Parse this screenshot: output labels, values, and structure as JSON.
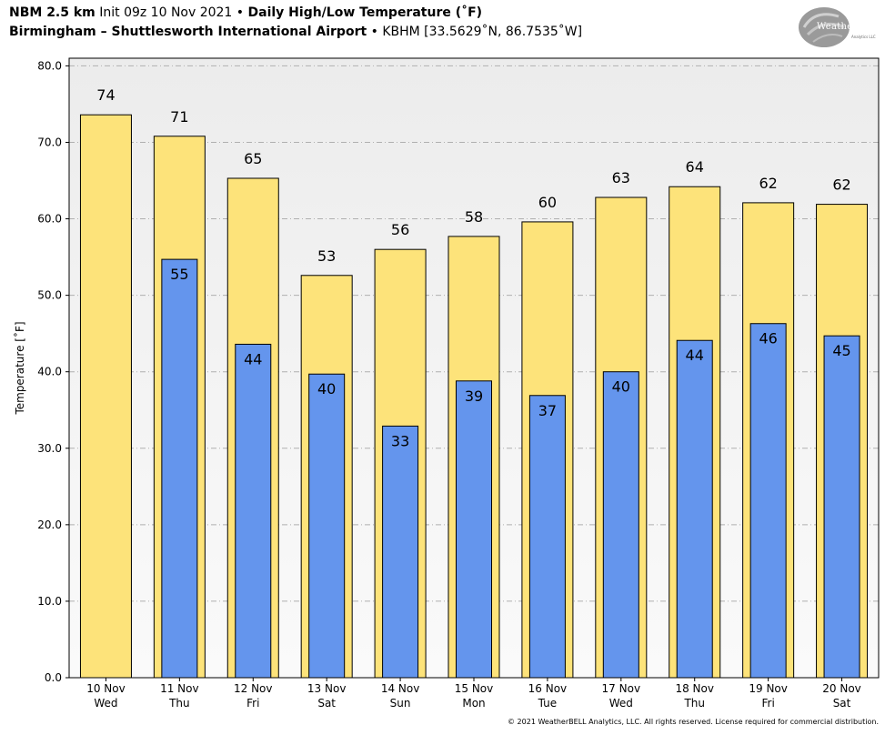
{
  "header": {
    "line1_bold_a": "NBM 2.5 km",
    "line1_regular": " Init 09z 10 Nov 2021 • ",
    "line1_bold_b": "Daily High/Low Temperature (˚F)",
    "line2_bold": "Birmingham – Shuttlesworth International Airport",
    "line2_regular": " • KBHM [33.5629˚N, 86.7535˚W]"
  },
  "logo": {
    "text": "WeatherBELL",
    "subtext": "Analytics LLC",
    "icon": "weatherbell-swirl-logo"
  },
  "copyright": "© 2021 WeatherBELL Analytics, LLC. All rights reserved. License required for commercial distribution.",
  "chart_data": {
    "type": "bar",
    "ylabel": "Temperature [˚F]",
    "xlabel": "",
    "ylim": [
      0,
      81
    ],
    "yticks": [
      0,
      10,
      20,
      30,
      40,
      50,
      60,
      70,
      80
    ],
    "ytick_labels": [
      "0.0",
      "10.0",
      "20.0",
      "30.0",
      "40.0",
      "50.0",
      "60.0",
      "70.0",
      "80.0"
    ],
    "grid": "horizontal dashed",
    "categories": [
      [
        "10 Nov",
        "Wed"
      ],
      [
        "11 Nov",
        "Thu"
      ],
      [
        "12 Nov",
        "Fri"
      ],
      [
        "13 Nov",
        "Sat"
      ],
      [
        "14 Nov",
        "Sun"
      ],
      [
        "15 Nov",
        "Mon"
      ],
      [
        "16 Nov",
        "Tue"
      ],
      [
        "17 Nov",
        "Wed"
      ],
      [
        "18 Nov",
        "Thu"
      ],
      [
        "19 Nov",
        "Fri"
      ],
      [
        "20 Nov",
        "Sat"
      ]
    ],
    "series": [
      {
        "name": "",
        "color": "#fde37a",
        "values": [
          73.6,
          70.8,
          65.3,
          52.6,
          56.0,
          57.7,
          59.6,
          62.8,
          64.2,
          62.1,
          61.9
        ],
        "labels": [
          "74",
          "71",
          "65",
          "53",
          "56",
          "58",
          "60",
          "63",
          "64",
          "62",
          "62"
        ]
      },
      {
        "name": "",
        "color": "#6495ed",
        "values": [
          null,
          54.7,
          43.6,
          39.7,
          32.9,
          38.8,
          36.9,
          40.0,
          44.1,
          46.3,
          44.7
        ],
        "labels": [
          null,
          "55",
          "44",
          "40",
          "33",
          "39",
          "37",
          "40",
          "44",
          "46",
          "45"
        ]
      }
    ],
    "colors": {
      "plot_bg_top": "#ececec",
      "plot_bg_bottom": "#fafafa",
      "grid": "#b0b0b0",
      "bar_edge": "#000000"
    }
  }
}
